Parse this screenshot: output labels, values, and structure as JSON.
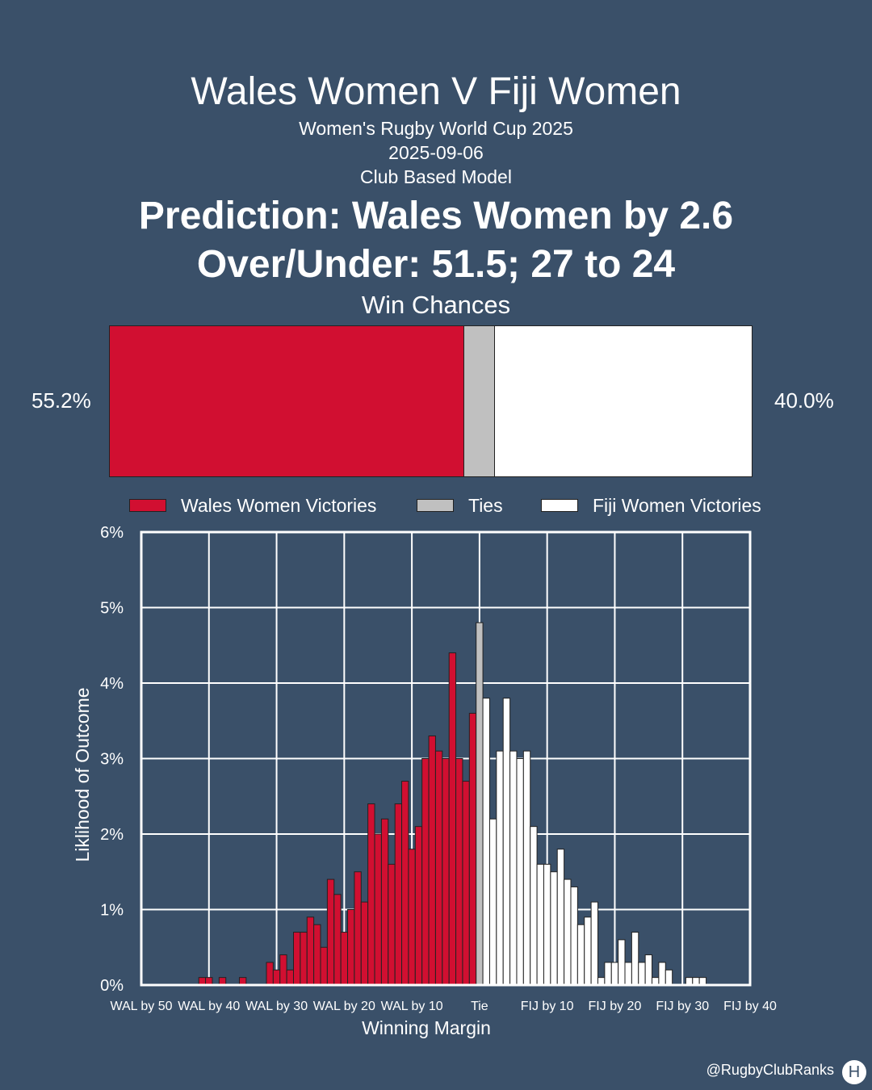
{
  "header": {
    "title": "Wales Women V Fiji Women",
    "competition": "Women's Rugby World Cup 2025",
    "date": "2025-09-06",
    "model": "Club Based Model",
    "prediction": "Prediction: Wales Women by 2.6",
    "over_under": "Over/Under: 51.5; 27 to 24"
  },
  "win_chances": {
    "title": "Win Chances",
    "wales_pct_label": "55.2%",
    "fiji_pct_label": "40.0%",
    "wales": 55.2,
    "ties": 4.8,
    "fiji": 40.0
  },
  "legend": {
    "wales": "Wales Women Victories",
    "ties": "Ties",
    "fiji": "Fiji Women Victories"
  },
  "colors": {
    "background": "#3a5069",
    "wales": "#d10f31",
    "ties": "#c0c0c0",
    "fiji": "#ffffff",
    "grid": "#ffffff"
  },
  "chart_data": {
    "type": "bar",
    "xlabel": "Winning Margin",
    "ylabel": "Liklihood of Outcome",
    "ylim": [
      0,
      6
    ],
    "xlim": [
      -50,
      40
    ],
    "y_tick_labels": [
      "0%",
      "1%",
      "2%",
      "3%",
      "4%",
      "5%",
      "6%"
    ],
    "y_ticks": [
      0,
      1,
      2,
      3,
      4,
      5,
      6
    ],
    "x_ticks": [
      -50,
      -40,
      -30,
      -20,
      -10,
      0,
      10,
      20,
      30,
      40
    ],
    "x_tick_labels": [
      "WAL by 50",
      "WAL by 40",
      "WAL by 30",
      "WAL by 20",
      "WAL by 10",
      "Tie",
      "FIJ by 10",
      "FIJ by 20",
      "FIJ by 30",
      "FIJ by 40"
    ],
    "grid": true,
    "series": [
      {
        "name": "Wales Women Victories",
        "x": [
          -41,
          -40,
          -38,
          -35,
          -31,
          -30,
          -29,
          -28,
          -27,
          -26,
          -25,
          -24,
          -23,
          -22,
          -21,
          -20,
          -19,
          -18,
          -17,
          -16,
          -15,
          -14,
          -13,
          -12,
          -11,
          -10,
          -9,
          -8,
          -7,
          -6,
          -5,
          -4,
          -3,
          -2,
          -1
        ],
        "values": [
          0.1,
          0.1,
          0.1,
          0.1,
          0.3,
          0.2,
          0.4,
          0.2,
          0.7,
          0.7,
          0.9,
          0.8,
          0.5,
          1.4,
          1.2,
          0.7,
          1.0,
          1.5,
          1.1,
          2.4,
          2.0,
          2.2,
          1.6,
          2.4,
          2.7,
          1.8,
          2.1,
          3.0,
          3.3,
          3.1,
          3.0,
          4.4,
          3.0,
          2.7,
          3.6
        ]
      },
      {
        "name": "Ties",
        "x": [
          0
        ],
        "values": [
          4.8
        ]
      },
      {
        "name": "Fiji Women Victories",
        "x": [
          1,
          2,
          3,
          4,
          5,
          6,
          7,
          8,
          9,
          10,
          11,
          12,
          13,
          14,
          15,
          16,
          17,
          18,
          19,
          20,
          21,
          22,
          23,
          24,
          25,
          26,
          27,
          28,
          31,
          32,
          33
        ],
        "values": [
          3.8,
          2.2,
          3.1,
          3.8,
          3.1,
          3.0,
          3.1,
          2.1,
          1.6,
          1.6,
          1.5,
          1.8,
          1.4,
          1.3,
          0.8,
          0.9,
          1.1,
          0.1,
          0.3,
          0.3,
          0.6,
          0.3,
          0.7,
          0.3,
          0.4,
          0.1,
          0.3,
          0.2,
          0.1,
          0.1,
          0.1
        ]
      }
    ]
  },
  "footer": {
    "handle": "@RugbyClubRanks",
    "logo_char": "H"
  }
}
